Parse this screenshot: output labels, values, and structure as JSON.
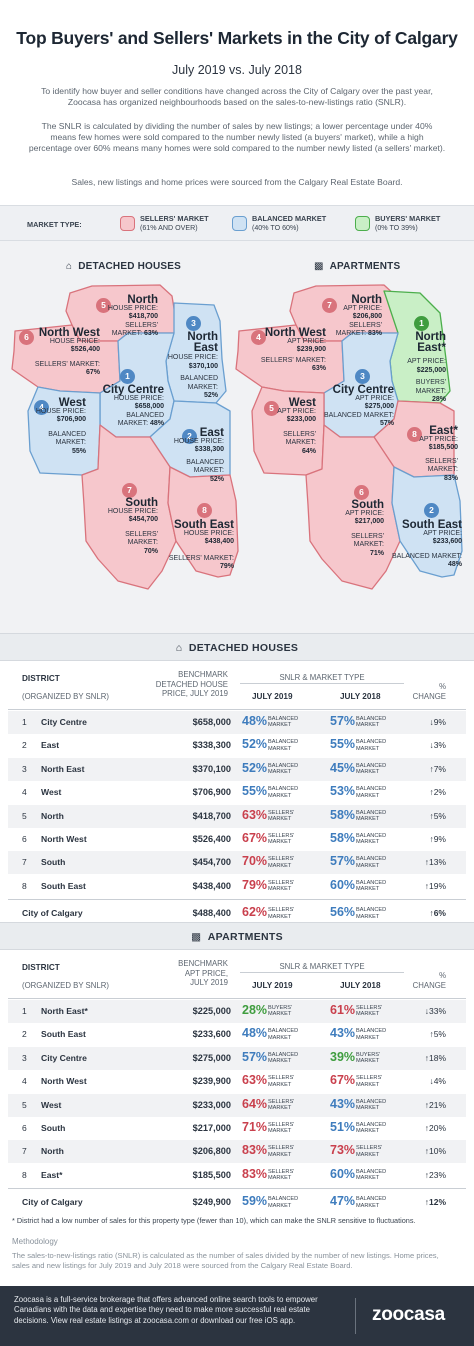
{
  "title": "Top Buyers' and Sellers' Markets in the City of Calgary",
  "subtitle": "July 2019 vs. July 2018",
  "intro": [
    "To identify how buyer and seller conditions have changed across the City of Calgary over the past year, Zoocasa has organized neighbourhoods based on the sales-to-new-listings ratio (SNLR).",
    "The SNLR is calculated by dividing the number of sales by new listings; a lower percentage under 40% means few homes were sold compared to the number newly listed (a buyers' market), while a high percentage over 60% means many homes were sold compared to the number newly listed (a sellers' market).",
    "Sales, new listings and home prices were sourced from the Calgary Real Estate Board."
  ],
  "legend": {
    "label": "MARKET TYPE:",
    "items": [
      {
        "name": "SELLERS' MARKET",
        "range": "(61% AND OVER)",
        "fill": "#f6c7cc",
        "stroke": "#d9737c"
      },
      {
        "name": "BALANCED MARKET",
        "range": "(40% TO 60%)",
        "fill": "#cfe2f3",
        "stroke": "#6a9fd0"
      },
      {
        "name": "BUYERS' MARKET",
        "range": "(0% TO 39%)",
        "fill": "#c9efc6",
        "stroke": "#4cae4c"
      }
    ]
  },
  "colors": {
    "sellers": "#d9737c",
    "balanced": "#4f88c4",
    "buyers": "#3f9d3f",
    "sellers_text": "#c9404d",
    "balanced_text": "#3e7cbd",
    "buyers_text": "#3f9d3f"
  },
  "maps": {
    "detached_title": "DETACHED HOUSES",
    "apartments_title": "APARTMENTS",
    "detached": [
      {
        "rank": "5",
        "name": "North",
        "price_label": "HOUSE PRICE:",
        "price": "$418,700",
        "market": "SELLERS' MARKET:",
        "snlr": "63%",
        "type": "sellers"
      },
      {
        "rank": "6",
        "name": "North West",
        "price_label": "HOUSE PRICE:",
        "price": "$526,400",
        "market": "SELLERS' MARKET:",
        "snlr": "67%",
        "type": "sellers"
      },
      {
        "rank": "3",
        "name": "North East",
        "price_label": "HOUSE PRICE:",
        "price": "$370,100",
        "market": "BALANCED MARKET:",
        "snlr": "52%",
        "type": "balanced"
      },
      {
        "rank": "1",
        "name": "City Centre",
        "price_label": "HOUSE PRICE:",
        "price": "$658,000",
        "market": "BALANCED MARKET:",
        "snlr": "48%",
        "type": "balanced"
      },
      {
        "rank": "4",
        "name": "West",
        "price_label": "HOUSE PRICE:",
        "price": "$706,900",
        "market": "BALANCED MARKET:",
        "snlr": "55%",
        "type": "balanced"
      },
      {
        "rank": "2",
        "name": "East",
        "price_label": "HOUSE PRICE:",
        "price": "$338,300",
        "market": "BALANCED MARKET:",
        "snlr": "52%",
        "type": "balanced"
      },
      {
        "rank": "7",
        "name": "South",
        "price_label": "HOUSE PRICE:",
        "price": "$454,700",
        "market": "SELLERS' MARKET:",
        "snlr": "70%",
        "type": "sellers"
      },
      {
        "rank": "8",
        "name": "South East",
        "price_label": "HOUSE PRICE:",
        "price": "$438,400",
        "market": "SELLERS' MARKET:",
        "snlr": "79%",
        "type": "sellers"
      }
    ],
    "apartments": [
      {
        "rank": "7",
        "name": "North",
        "price_label": "APT PRICE:",
        "price": "$206,800",
        "market": "SELLERS' MARKET:",
        "snlr": "83%",
        "type": "sellers"
      },
      {
        "rank": "4",
        "name": "North West",
        "price_label": "APT PRICE:",
        "price": "$239,900",
        "market": "SELLERS' MARKET:",
        "snlr": "63%",
        "type": "sellers"
      },
      {
        "rank": "1",
        "name": "North East*",
        "price_label": "APT PRICE:",
        "price": "$225,000",
        "market": "BUYERS' MARKET:",
        "snlr": "28%",
        "type": "buyers"
      },
      {
        "rank": "3",
        "name": "City Centre",
        "price_label": "APT PRICE:",
        "price": "$275,000",
        "market": "BALANCED MARKET:",
        "snlr": "57%",
        "type": "balanced"
      },
      {
        "rank": "5",
        "name": "West",
        "price_label": "APT PRICE:",
        "price": "$233,000",
        "market": "SELLERS' MARKET:",
        "snlr": "64%",
        "type": "sellers"
      },
      {
        "rank": "8",
        "name": "East*",
        "price_label": "APT PRICE:",
        "price": "$185,500",
        "market": "SELLERS' MARKET:",
        "snlr": "83%",
        "type": "sellers"
      },
      {
        "rank": "6",
        "name": "South",
        "price_label": "APT PRICE:",
        "price": "$217,000",
        "market": "SELLERS' MARKET:",
        "snlr": "71%",
        "type": "sellers"
      },
      {
        "rank": "2",
        "name": "South East",
        "price_label": "APT PRICE:",
        "price": "$233,600",
        "market": "BALANCED MARKET:",
        "snlr": "48%",
        "type": "balanced"
      }
    ]
  },
  "tables": {
    "col_district": "DISTRICT",
    "col_organized": "(ORGANIZED BY SNLR)",
    "col_snlr": "SNLR & MARKET TYPE",
    "col_2019": "JULY 2019",
    "col_2018": "JULY 2018",
    "col_pct": "%",
    "col_change": "CHANGE",
    "detached": {
      "title": "DETACHED HOUSES",
      "price_head": [
        "BENCHMARK",
        "DETACHED HOUSE",
        "PRICE, JULY 2019"
      ],
      "rows": [
        {
          "rank": "1",
          "district": "City Centre",
          "price": "$658,000",
          "y19": "48%",
          "t19": "balanced",
          "y18": "57%",
          "t18": "balanced",
          "dir": "down",
          "change": "9%"
        },
        {
          "rank": "2",
          "district": "East",
          "price": "$338,300",
          "y19": "52%",
          "t19": "balanced",
          "y18": "55%",
          "t18": "balanced",
          "dir": "down",
          "change": "3%"
        },
        {
          "rank": "3",
          "district": "North East",
          "price": "$370,100",
          "y19": "52%",
          "t19": "balanced",
          "y18": "45%",
          "t18": "balanced",
          "dir": "up",
          "change": "7%"
        },
        {
          "rank": "4",
          "district": "West",
          "price": "$706,900",
          "y19": "55%",
          "t19": "balanced",
          "y18": "53%",
          "t18": "balanced",
          "dir": "up",
          "change": "2%"
        },
        {
          "rank": "5",
          "district": "North",
          "price": "$418,700",
          "y19": "63%",
          "t19": "sellers",
          "y18": "58%",
          "t18": "balanced",
          "dir": "up",
          "change": "5%"
        },
        {
          "rank": "6",
          "district": "North West",
          "price": "$526,400",
          "y19": "67%",
          "t19": "sellers",
          "y18": "58%",
          "t18": "balanced",
          "dir": "up",
          "change": "9%"
        },
        {
          "rank": "7",
          "district": "South",
          "price": "$454,700",
          "y19": "70%",
          "t19": "sellers",
          "y18": "57%",
          "t18": "balanced",
          "dir": "up",
          "change": "13%"
        },
        {
          "rank": "8",
          "district": "South East",
          "price": "$438,400",
          "y19": "79%",
          "t19": "sellers",
          "y18": "60%",
          "t18": "balanced",
          "dir": "up",
          "change": "19%"
        }
      ],
      "total": {
        "district": "City of Calgary",
        "price": "$488,400",
        "y19": "62%",
        "t19": "sellers",
        "y18": "56%",
        "t18": "balanced",
        "dir": "up",
        "change": "6%"
      }
    },
    "apartments": {
      "title": "APARTMENTS",
      "price_head": [
        "BENCHMARK",
        "APT PRICE,",
        "JULY 2019"
      ],
      "rows": [
        {
          "rank": "1",
          "district": "North East*",
          "price": "$225,000",
          "y19": "28%",
          "t19": "buyers",
          "y18": "61%",
          "t18": "sellers",
          "dir": "down",
          "change": "33%"
        },
        {
          "rank": "2",
          "district": "South East",
          "price": "$233,600",
          "y19": "48%",
          "t19": "balanced",
          "y18": "43%",
          "t18": "balanced",
          "dir": "up",
          "change": "5%"
        },
        {
          "rank": "3",
          "district": "City Centre",
          "price": "$275,000",
          "y19": "57%",
          "t19": "balanced",
          "y18": "39%",
          "t18": "buyers",
          "dir": "up",
          "change": "18%"
        },
        {
          "rank": "4",
          "district": "North West",
          "price": "$239,900",
          "y19": "63%",
          "t19": "sellers",
          "y18": "67%",
          "t18": "sellers",
          "dir": "down",
          "change": "4%"
        },
        {
          "rank": "5",
          "district": "West",
          "price": "$233,000",
          "y19": "64%",
          "t19": "sellers",
          "y18": "43%",
          "t18": "balanced",
          "dir": "up",
          "change": "21%"
        },
        {
          "rank": "6",
          "district": "South",
          "price": "$217,000",
          "y19": "71%",
          "t19": "sellers",
          "y18": "51%",
          "t18": "balanced",
          "dir": "up",
          "change": "20%"
        },
        {
          "rank": "7",
          "district": "North",
          "price": "$206,800",
          "y19": "83%",
          "t19": "sellers",
          "y18": "73%",
          "t18": "sellers",
          "dir": "up",
          "change": "10%"
        },
        {
          "rank": "8",
          "district": "East*",
          "price": "$185,500",
          "y19": "83%",
          "t19": "sellers",
          "y18": "60%",
          "t18": "balanced",
          "dir": "up",
          "change": "23%"
        }
      ],
      "total": {
        "district": "City of Calgary",
        "price": "$249,900",
        "y19": "59%",
        "t19": "balanced",
        "y18": "47%",
        "t18": "balanced",
        "dir": "up",
        "change": "12%"
      }
    },
    "market_words": {
      "balanced": [
        "BALANCED",
        "MARKET"
      ],
      "sellers": [
        "SELLERS'",
        "MARKET"
      ],
      "buyers": [
        "BUYERS'",
        "MARKET"
      ]
    },
    "arrows": {
      "up": "↑",
      "down": "↓"
    }
  },
  "footnote": "* District had a low number of sales for this property type (fewer than 10), which can make the SNLR sensitive to fluctuations.",
  "methodology_title": "Methodology",
  "methodology": "The sales-to-new-listings ratio (SNLR) is calculated as the number of sales divided by the number of new listings. Home prices, sales and new listings for July 2019 and July 2018 were sourced from the Calgary Real Estate Board.",
  "footer": {
    "text": "Zoocasa is a full-service brokerage that offers advanced online search tools to empower Canadians with the data and expertise they need to make more successful real estate decisions. View real estate listings at zoocasa.com or download our free iOS app.",
    "logo": "zoocasa"
  }
}
